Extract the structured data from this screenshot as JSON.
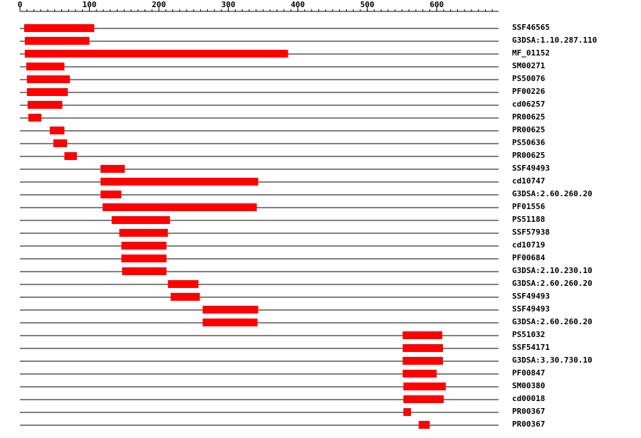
{
  "chart_data": {
    "type": "range",
    "categories": [
      "SSF46565",
      "G3DSA:1.10.287.110",
      "MF_01152",
      "SM00271",
      "PS50076",
      "PF00226",
      "cd06257",
      "PR00625",
      "PR00625",
      "PS50636",
      "PR00625",
      "SSF49493",
      "cd10747",
      "G3DSA:2.60.260.20",
      "PF01556",
      "PS51188",
      "SSF57938",
      "cd10719",
      "PF00684",
      "G3DSA:2.10.230.10",
      "G3DSA:2.60.260.20",
      "SSF49493",
      "SSF49493",
      "G3DSA:2.60.260.20",
      "PS51032",
      "SSF54171",
      "G3DSA:3.30.730.10",
      "PF00847",
      "SM00380",
      "cd00018",
      "PR00367",
      "PR00367"
    ],
    "values": [
      [
        6,
        107
      ],
      [
        7,
        100
      ],
      [
        7,
        386
      ],
      [
        9,
        64
      ],
      [
        10,
        72
      ],
      [
        10,
        69
      ],
      [
        11,
        61
      ],
      [
        12,
        31
      ],
      [
        43,
        64
      ],
      [
        48,
        68
      ],
      [
        64,
        82
      ],
      [
        116,
        151
      ],
      [
        116,
        343
      ],
      [
        116,
        146
      ],
      [
        119,
        341
      ],
      [
        132,
        216
      ],
      [
        143,
        213
      ],
      [
        146,
        211
      ],
      [
        146,
        211
      ],
      [
        147,
        211
      ],
      [
        213,
        257
      ],
      [
        217,
        259
      ],
      [
        263,
        343
      ],
      [
        263,
        342
      ],
      [
        551,
        608
      ],
      [
        551,
        609
      ],
      [
        551,
        609
      ],
      [
        551,
        600
      ],
      [
        552,
        613
      ],
      [
        552,
        610
      ],
      [
        552,
        563
      ],
      [
        574,
        590
      ]
    ],
    "color": "#ff0000",
    "xlim": [
      0,
      689
    ],
    "xticks": [
      0,
      100,
      200,
      300,
      400,
      500,
      600
    ],
    "minor_tick_step": 10
  }
}
